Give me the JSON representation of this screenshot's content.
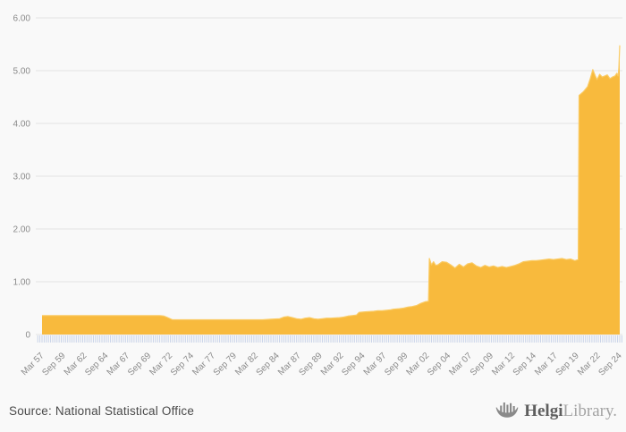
{
  "footer": {
    "source_label": "Source: National Statistical Office",
    "logo": {
      "brand_primary": "Helgi",
      "brand_secondary": "Library."
    }
  },
  "chart_data": {
    "type": "area",
    "title": "",
    "xlabel": "",
    "ylabel": "",
    "ylim": [
      0,
      6
    ],
    "xlim": [
      1957.25,
      2024.75
    ],
    "grid": true,
    "legend": "none",
    "minor_tick_interval_years": 0.25,
    "y_ticks": [
      {
        "label": "6.00",
        "value": 6
      },
      {
        "label": "5.00",
        "value": 5
      },
      {
        "label": "4.00",
        "value": 4
      },
      {
        "label": "3.00",
        "value": 3
      },
      {
        "label": "2.00",
        "value": 2
      },
      {
        "label": "1.00",
        "value": 1
      },
      {
        "label": "0",
        "value": 0
      }
    ],
    "x_ticks": [
      {
        "label": "Mar 57",
        "year": 1957.2
      },
      {
        "label": "Sep 59",
        "year": 1959.7
      },
      {
        "label": "Mar 62",
        "year": 1962.2
      },
      {
        "label": "Sep 64",
        "year": 1964.7
      },
      {
        "label": "Mar 67",
        "year": 1967.2
      },
      {
        "label": "Sep 69",
        "year": 1969.7
      },
      {
        "label": "Mar 72",
        "year": 1972.2
      },
      {
        "label": "Sep 74",
        "year": 1974.7
      },
      {
        "label": "Mar 77",
        "year": 1977.2
      },
      {
        "label": "Sep 79",
        "year": 1979.7
      },
      {
        "label": "Mar 82",
        "year": 1982.2
      },
      {
        "label": "Sep 84",
        "year": 1984.7
      },
      {
        "label": "Mar 87",
        "year": 1987.2
      },
      {
        "label": "Sep 89",
        "year": 1989.7
      },
      {
        "label": "Mar 92",
        "year": 1992.2
      },
      {
        "label": "Sep 94",
        "year": 1994.7
      },
      {
        "label": "Mar 97",
        "year": 1997.2
      },
      {
        "label": "Sep 99",
        "year": 1999.7
      },
      {
        "label": "Mar 02",
        "year": 2002.2
      },
      {
        "label": "Sep 04",
        "year": 2004.7
      },
      {
        "label": "Mar 07",
        "year": 2007.2
      },
      {
        "label": "Sep 09",
        "year": 2009.7
      },
      {
        "label": "Mar 12",
        "year": 2012.2
      },
      {
        "label": "Sep 14",
        "year": 2014.7
      },
      {
        "label": "Mar 17",
        "year": 2017.2
      },
      {
        "label": "Sep 19",
        "year": 2019.7
      },
      {
        "label": "Mar 22",
        "year": 2022.2
      },
      {
        "label": "Sep 24",
        "year": 2024.7
      }
    ],
    "series": [
      {
        "name": "value",
        "points": [
          [
            1957.25,
            0.36
          ],
          [
            1958,
            0.36
          ],
          [
            1959,
            0.36
          ],
          [
            1960,
            0.36
          ],
          [
            1961,
            0.36
          ],
          [
            1962,
            0.36
          ],
          [
            1963,
            0.36
          ],
          [
            1964,
            0.36
          ],
          [
            1965,
            0.36
          ],
          [
            1966,
            0.36
          ],
          [
            1967,
            0.36
          ],
          [
            1968,
            0.36
          ],
          [
            1969,
            0.36
          ],
          [
            1970,
            0.36
          ],
          [
            1971,
            0.36
          ],
          [
            1971.5,
            0.35
          ],
          [
            1971.8,
            0.33
          ],
          [
            1972.5,
            0.28
          ],
          [
            1973,
            0.28
          ],
          [
            1974,
            0.28
          ],
          [
            1975,
            0.28
          ],
          [
            1976,
            0.28
          ],
          [
            1977,
            0.28
          ],
          [
            1978,
            0.28
          ],
          [
            1979,
            0.28
          ],
          [
            1980,
            0.28
          ],
          [
            1981,
            0.28
          ],
          [
            1982,
            0.28
          ],
          [
            1983,
            0.28
          ],
          [
            1984,
            0.29
          ],
          [
            1985,
            0.3
          ],
          [
            1985.5,
            0.33
          ],
          [
            1986,
            0.34
          ],
          [
            1986.5,
            0.32
          ],
          [
            1987,
            0.3
          ],
          [
            1987.5,
            0.29
          ],
          [
            1988,
            0.31
          ],
          [
            1988.5,
            0.32
          ],
          [
            1989,
            0.3
          ],
          [
            1989.5,
            0.29
          ],
          [
            1990,
            0.3
          ],
          [
            1990.5,
            0.31
          ],
          [
            1991,
            0.31
          ],
          [
            1992,
            0.32
          ],
          [
            1992.5,
            0.33
          ],
          [
            1993,
            0.35
          ],
          [
            1993.5,
            0.36
          ],
          [
            1994,
            0.37
          ],
          [
            1994.3,
            0.42
          ],
          [
            1995,
            0.43
          ],
          [
            1996,
            0.44
          ],
          [
            1996.5,
            0.45
          ],
          [
            1997,
            0.45
          ],
          [
            1997.5,
            0.46
          ],
          [
            1998,
            0.47
          ],
          [
            1998.3,
            0.48
          ],
          [
            1999,
            0.49
          ],
          [
            1999.5,
            0.5
          ],
          [
            2000,
            0.52
          ],
          [
            2000.5,
            0.53
          ],
          [
            2001,
            0.55
          ],
          [
            2001.5,
            0.59
          ],
          [
            2002,
            0.62
          ],
          [
            2002.4,
            0.63
          ],
          [
            2002.5,
            1.44
          ],
          [
            2002.75,
            1.32
          ],
          [
            2003,
            1.38
          ],
          [
            2003.25,
            1.31
          ],
          [
            2003.5,
            1.32
          ],
          [
            2004,
            1.38
          ],
          [
            2004.5,
            1.37
          ],
          [
            2005,
            1.32
          ],
          [
            2005.5,
            1.26
          ],
          [
            2006,
            1.33
          ],
          [
            2006.5,
            1.28
          ],
          [
            2007,
            1.34
          ],
          [
            2007.5,
            1.36
          ],
          [
            2008,
            1.3
          ],
          [
            2008.5,
            1.27
          ],
          [
            2009,
            1.31
          ],
          [
            2009.5,
            1.28
          ],
          [
            2010,
            1.3
          ],
          [
            2010.5,
            1.27
          ],
          [
            2011,
            1.29
          ],
          [
            2011.5,
            1.27
          ],
          [
            2012,
            1.29
          ],
          [
            2012.5,
            1.31
          ],
          [
            2013,
            1.34
          ],
          [
            2013.5,
            1.38
          ],
          [
            2014,
            1.39
          ],
          [
            2014.5,
            1.4
          ],
          [
            2015,
            1.4
          ],
          [
            2015.5,
            1.41
          ],
          [
            2016,
            1.42
          ],
          [
            2016.5,
            1.43
          ],
          [
            2017,
            1.42
          ],
          [
            2017.5,
            1.43
          ],
          [
            2018,
            1.44
          ],
          [
            2018.5,
            1.42
          ],
          [
            2019,
            1.43
          ],
          [
            2019.5,
            1.4
          ],
          [
            2019.9,
            1.42
          ],
          [
            2020,
            4.53
          ],
          [
            2020.5,
            4.6
          ],
          [
            2021,
            4.7
          ],
          [
            2021.3,
            4.85
          ],
          [
            2021.6,
            5.02
          ],
          [
            2021.9,
            4.9
          ],
          [
            2022.1,
            4.83
          ],
          [
            2022.4,
            4.93
          ],
          [
            2022.7,
            4.88
          ],
          [
            2023,
            4.9
          ],
          [
            2023.3,
            4.92
          ],
          [
            2023.6,
            4.85
          ],
          [
            2023.9,
            4.88
          ],
          [
            2024.2,
            4.9
          ],
          [
            2024.4,
            4.95
          ],
          [
            2024.55,
            4.9
          ],
          [
            2024.65,
            5.05
          ],
          [
            2024.75,
            5.48
          ]
        ]
      }
    ],
    "colors": {
      "background": "#f9f9f9",
      "area_fill": "#F8BA3D",
      "area_line": "#FACB64",
      "grid": "#e4e4e4",
      "minor_tick": "#c9d3e8",
      "axis_label": "#8a8a8a"
    }
  }
}
